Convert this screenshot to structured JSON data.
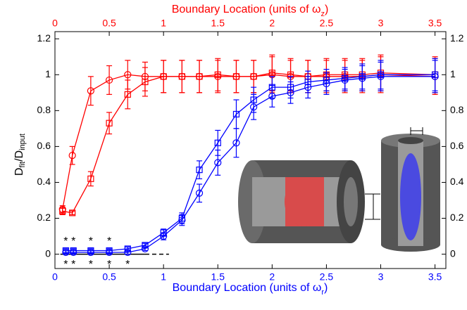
{
  "chart_data": {
    "type": "line",
    "xlabel_parts": [
      "Boundary Location (units of ω",
      "r",
      ")"
    ],
    "x2label_parts": [
      "Boundary Location (units of ω",
      "z",
      ")"
    ],
    "ylabel_parts": [
      "D",
      "fit",
      "/D",
      "input"
    ],
    "xlim": [
      0,
      3.6
    ],
    "xticks": [
      0,
      0.5,
      1,
      1.5,
      2,
      2.5,
      3,
      3.5
    ],
    "x2lim": [
      0,
      3.6
    ],
    "x2ticks": [
      0,
      0.5,
      1,
      1.5,
      2,
      2.5,
      3,
      3.5
    ],
    "ylim": [
      -0.08,
      1.24
    ],
    "yticks": [
      0,
      0.2,
      0.4,
      0.6,
      0.8,
      1,
      1.2
    ],
    "reference_line": 0,
    "series": [
      {
        "color": "#ff0000",
        "marker": "circle",
        "axis": "x2",
        "x": [
          0.07,
          0.16,
          0.33,
          0.5,
          0.67,
          0.83,
          1.0,
          1.17,
          1.33,
          1.5,
          1.67,
          1.83,
          2.0,
          2.17,
          2.33,
          2.5,
          2.67,
          2.83,
          3.0,
          3.5
        ],
        "values": [
          0.25,
          0.55,
          0.91,
          0.97,
          1.0,
          0.99,
          0.99,
          0.99,
          0.99,
          0.99,
          0.99,
          0.99,
          1.0,
          0.99,
          0.99,
          0.99,
          0.99,
          0.99,
          1.0,
          0.99
        ],
        "errors": [
          0.02,
          0.05,
          0.08,
          0.08,
          0.08,
          0.08,
          0.09,
          0.09,
          0.09,
          0.09,
          0.09,
          0.09,
          0.1,
          0.09,
          0.09,
          0.09,
          0.09,
          0.09,
          0.1,
          0.1
        ]
      },
      {
        "color": "#ff0000",
        "marker": "square",
        "axis": "x2",
        "x": [
          0.07,
          0.16,
          0.33,
          0.5,
          0.67,
          0.83,
          1.0,
          1.17,
          1.33,
          1.5,
          1.67,
          1.83,
          2.0,
          2.17,
          2.33,
          2.5,
          2.67,
          2.83,
          3.0,
          3.5
        ],
        "values": [
          0.24,
          0.23,
          0.42,
          0.73,
          0.89,
          0.96,
          0.99,
          0.99,
          0.99,
          1.0,
          0.99,
          0.99,
          1.01,
          1.0,
          0.99,
          1.0,
          1.0,
          1.0,
          1.01,
          1.0
        ],
        "errors": [
          0.02,
          0.01,
          0.04,
          0.06,
          0.08,
          0.08,
          0.09,
          0.09,
          0.09,
          0.09,
          0.09,
          0.09,
          0.1,
          0.09,
          0.09,
          0.09,
          0.09,
          0.09,
          0.1,
          0.1
        ]
      },
      {
        "color": "#0000ff",
        "marker": "circle",
        "x": [
          0.1,
          0.17,
          0.33,
          0.5,
          0.67,
          0.83,
          1.0,
          1.17,
          1.33,
          1.5,
          1.67,
          1.83,
          2.0,
          2.17,
          2.33,
          2.5,
          2.67,
          2.83,
          3.0,
          3.5
        ],
        "values": [
          0.01,
          0.01,
          0.01,
          0.01,
          0.01,
          0.03,
          0.1,
          0.19,
          0.34,
          0.51,
          0.62,
          0.82,
          0.88,
          0.9,
          0.93,
          0.95,
          0.97,
          0.98,
          0.99,
          0.99
        ],
        "errors": [
          0.01,
          0.01,
          0.01,
          0.01,
          0.01,
          0.01,
          0.02,
          0.03,
          0.05,
          0.07,
          0.08,
          0.07,
          0.06,
          0.06,
          0.06,
          0.06,
          0.06,
          0.07,
          0.08,
          0.09
        ],
        "significance": [
          null,
          null,
          null,
          null,
          null,
          null,
          null,
          null,
          null,
          null,
          null,
          null,
          null,
          null,
          null,
          null,
          null,
          null,
          null,
          null
        ]
      },
      {
        "color": "#0000ff",
        "marker": "square",
        "x": [
          0.1,
          0.17,
          0.33,
          0.5,
          0.67,
          0.83,
          1.0,
          1.17,
          1.33,
          1.5,
          1.67,
          1.83,
          2.0,
          2.17,
          2.33,
          2.5,
          2.67,
          2.83,
          3.0,
          3.5
        ],
        "values": [
          0.02,
          0.02,
          0.02,
          0.02,
          0.03,
          0.05,
          0.12,
          0.2,
          0.47,
          0.62,
          0.78,
          0.86,
          0.93,
          0.93,
          0.96,
          0.97,
          0.98,
          0.99,
          1.0,
          1.0
        ],
        "errors": [
          0.01,
          0.01,
          0.01,
          0.01,
          0.01,
          0.01,
          0.02,
          0.03,
          0.05,
          0.07,
          0.08,
          0.07,
          0.06,
          0.06,
          0.06,
          0.06,
          0.06,
          0.07,
          0.08,
          0.09
        ]
      }
    ],
    "significance_upper": [
      "*",
      "*",
      "*",
      "*",
      null
    ],
    "significance_lower": [
      "*",
      "*",
      "*",
      "*",
      "*"
    ],
    "significance_x": [
      0.1,
      0.17,
      0.33,
      0.5,
      0.67
    ]
  }
}
